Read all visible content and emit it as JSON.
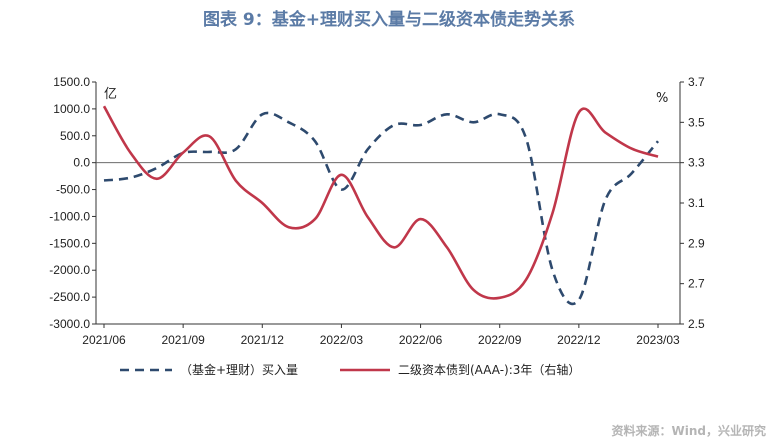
{
  "title": "图表 9：基金+理财买入量与二级资本债走势关系",
  "source": "资料来源：Wind，兴业研究",
  "chart_data": {
    "type": "line",
    "x": [
      "2021/06",
      "2021/07",
      "2021/08",
      "2021/09",
      "2021/10",
      "2021/11",
      "2021/12",
      "2022/01",
      "2022/02",
      "2022/03",
      "2022/04",
      "2022/05",
      "2022/06",
      "2022/07",
      "2022/08",
      "2022/09",
      "2022/10",
      "2022/11",
      "2022/12",
      "2023/01",
      "2023/02",
      "2023/03"
    ],
    "x_tick_labels": [
      "2021/06",
      "2021/09",
      "2021/12",
      "2022/03",
      "2022/06",
      "2022/09",
      "2022/12",
      "2023/03"
    ],
    "left_unit": "亿",
    "right_unit": "%",
    "left_axis": {
      "ylim": [
        -3000,
        1500
      ],
      "ticks": [
        "1500.0",
        "1000.0",
        "500.0",
        "0.0",
        "-500.0",
        "-1000.0",
        "-1500.0",
        "-2000.0",
        "-2500.0",
        "-3000.0"
      ]
    },
    "right_axis": {
      "ylim": [
        2.5,
        3.7
      ],
      "ticks": [
        "3.7",
        "3.5",
        "3.3",
        "3.1",
        "2.9",
        "2.7",
        "2.5"
      ]
    },
    "series": [
      {
        "name": "（基金+理财）买入量",
        "axis": "left",
        "style": "dashed",
        "color": "#2e4a6e",
        "values": [
          -330,
          -280,
          -100,
          180,
          200,
          250,
          900,
          750,
          400,
          -500,
          250,
          700,
          700,
          900,
          750,
          900,
          450,
          -2000,
          -2550,
          -700,
          -200,
          400
        ]
      },
      {
        "name": "二级资本债到(AAA-):3年（右轴）",
        "axis": "right",
        "style": "solid",
        "color": "#c0374a",
        "values": [
          3.58,
          3.35,
          3.22,
          3.35,
          3.43,
          3.21,
          3.1,
          2.98,
          3.02,
          3.24,
          3.03,
          2.88,
          3.02,
          2.88,
          2.67,
          2.63,
          2.72,
          3.05,
          3.55,
          3.45,
          3.37,
          3.33
        ]
      }
    ]
  }
}
